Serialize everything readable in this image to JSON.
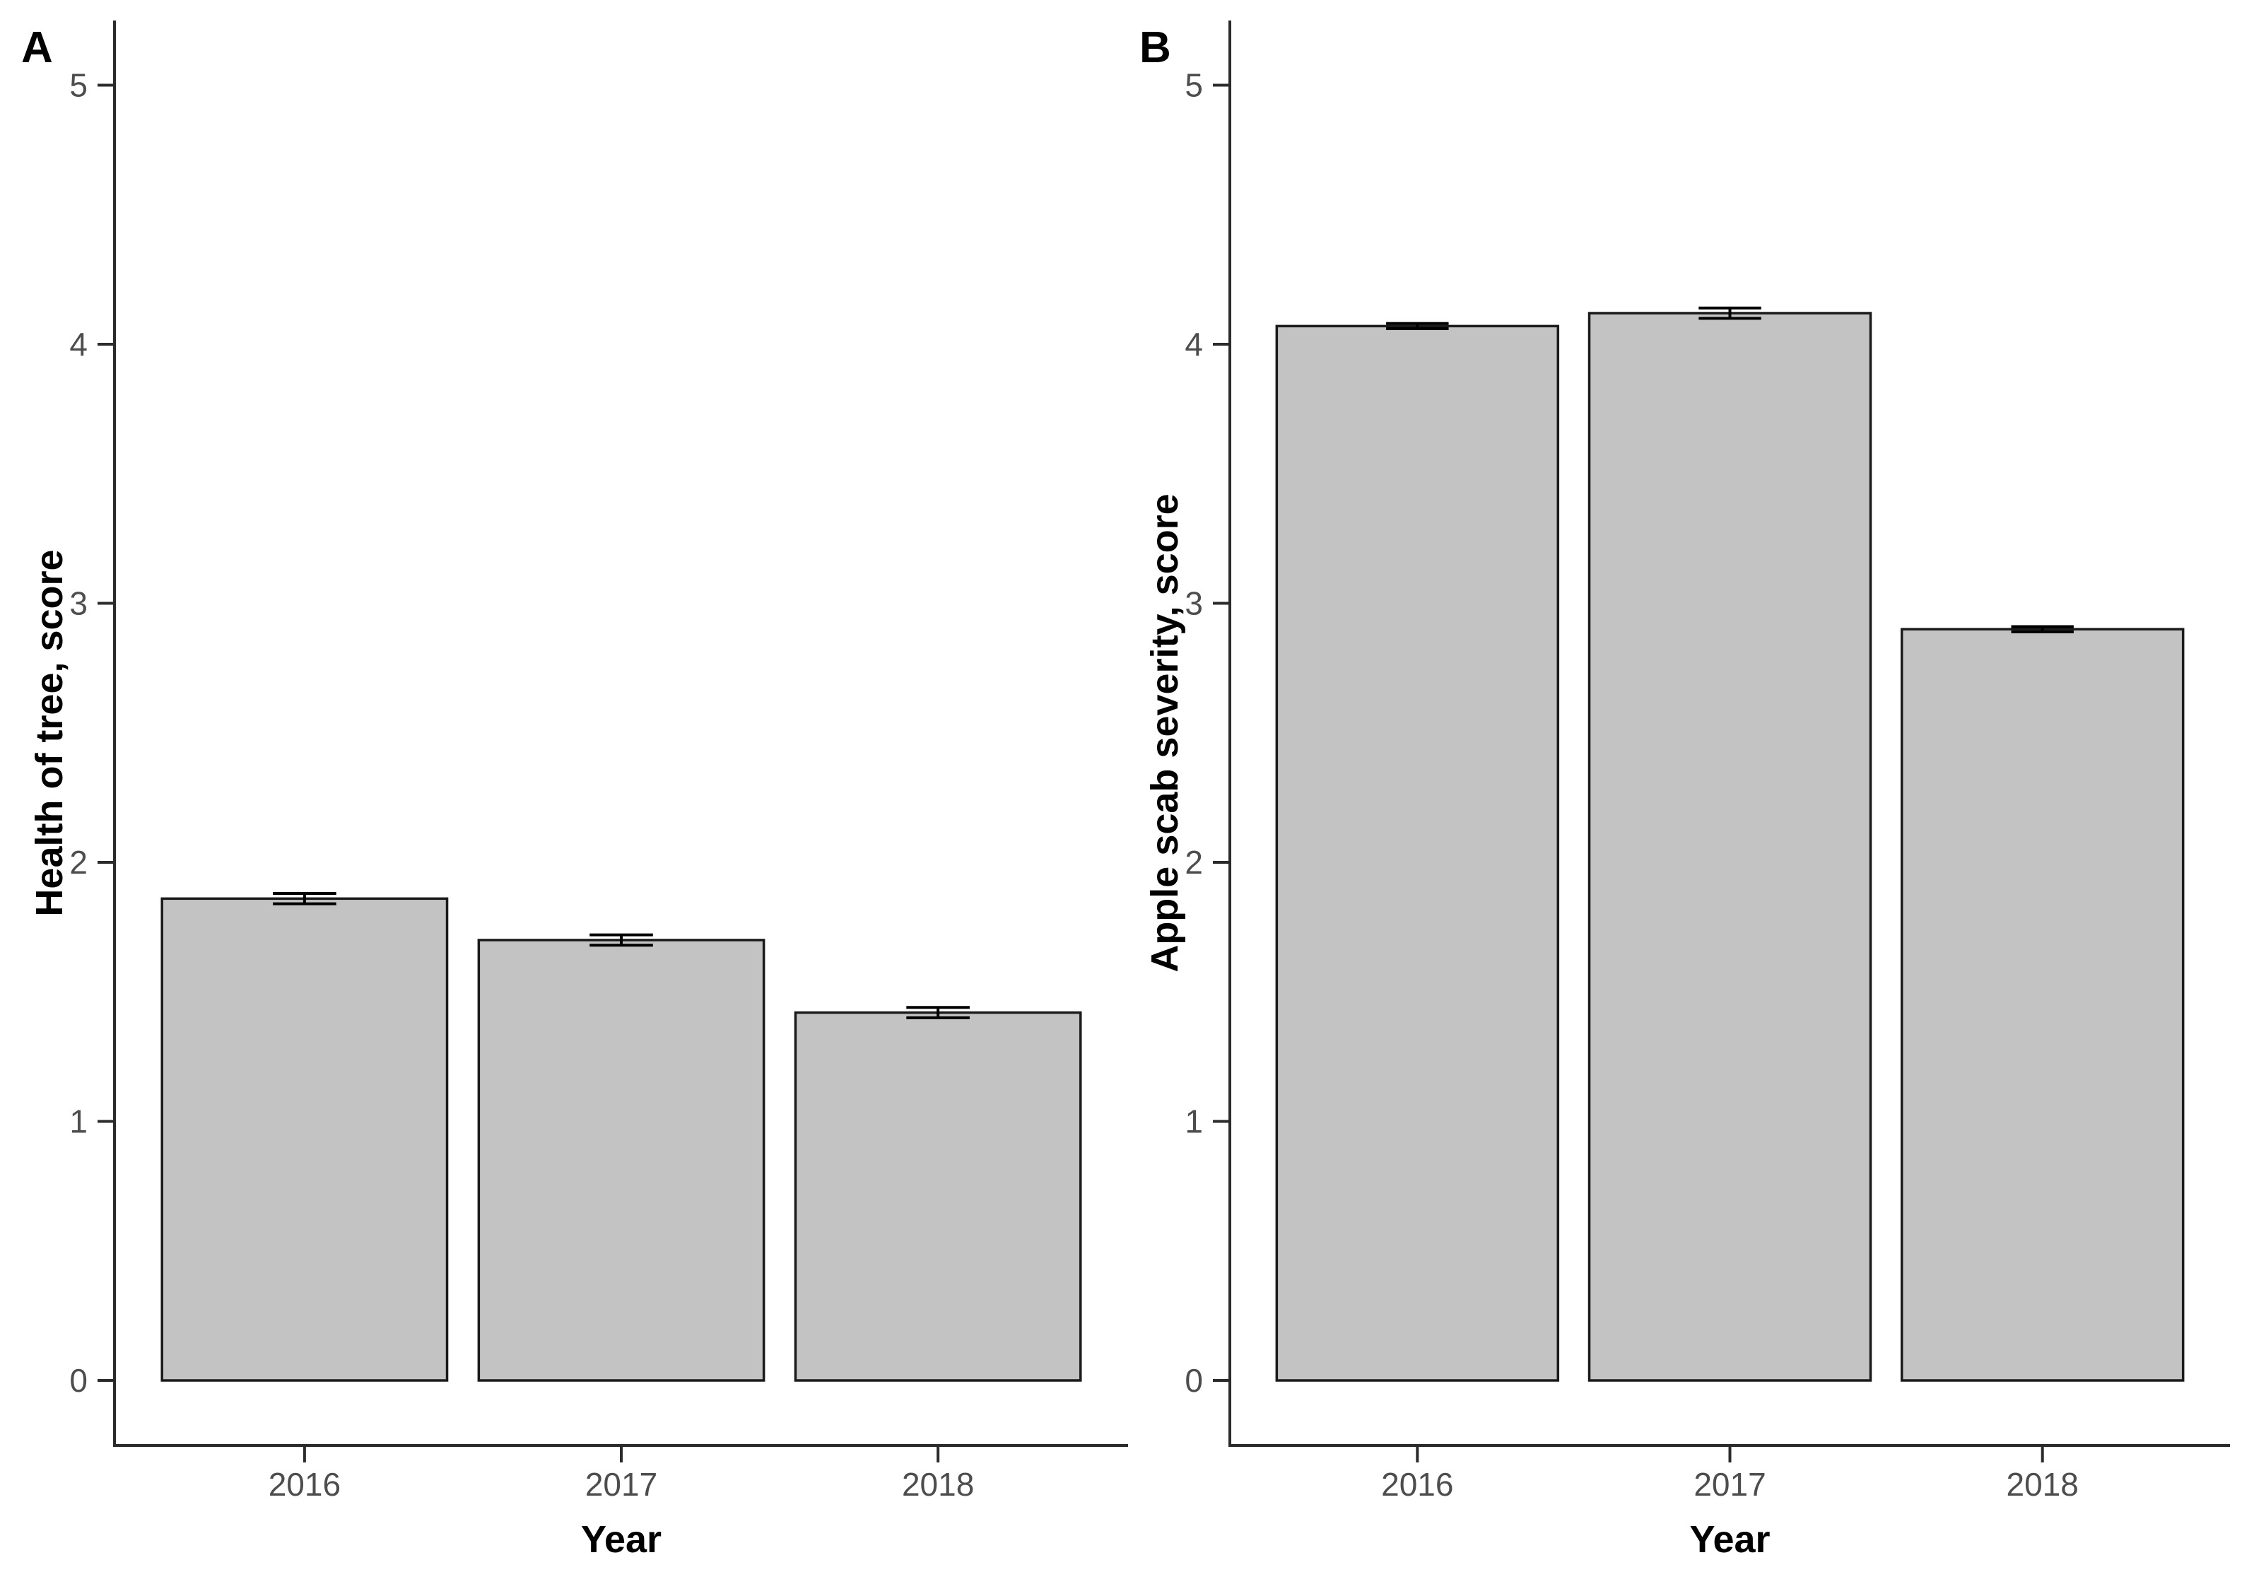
{
  "figure": {
    "description": "Two-panel bar chart with error bars, panels A and B, yearly scores",
    "background": "#ffffff"
  },
  "colors": {
    "bar_fill": "#c3c3c3",
    "bar_stroke": "#1a1a1a",
    "error_bar": "#000000",
    "axis_line": "#2b2b2b",
    "tick_label": "#4d4d4d",
    "axis_title": "#000000",
    "panel_letter": "#000000"
  },
  "chart_data": [
    {
      "type": "bar",
      "panel_label": "A",
      "categories": [
        "2016",
        "2017",
        "2018"
      ],
      "values": [
        1.86,
        1.7,
        1.42
      ],
      "errors": [
        0.02,
        0.02,
        0.02
      ],
      "xlabel": "Year",
      "ylabel": "Health of tree, score",
      "yticks": [
        0,
        1,
        2,
        3,
        4,
        5
      ],
      "ylim": [
        0,
        5.25
      ],
      "grid": false,
      "legend": false
    },
    {
      "type": "bar",
      "panel_label": "B",
      "categories": [
        "2016",
        "2017",
        "2018"
      ],
      "values": [
        4.07,
        4.12,
        2.9
      ],
      "errors": [
        0.01,
        0.02,
        0.01
      ],
      "xlabel": "Year",
      "ylabel": "Apple scab severity, score",
      "yticks": [
        0,
        1,
        2,
        3,
        4,
        5
      ],
      "ylim": [
        0,
        5.25
      ],
      "grid": false,
      "legend": false
    }
  ]
}
